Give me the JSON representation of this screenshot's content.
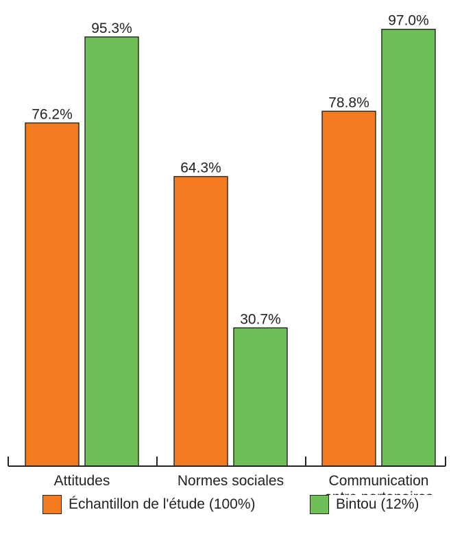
{
  "chart_data": {
    "type": "bar",
    "title": "",
    "xlabel": "",
    "ylabel": "",
    "ylim": [
      0,
      100
    ],
    "grid": false,
    "legend_position": "bottom",
    "categories": [
      "Attitudes",
      "Normes sociales",
      "Communication entre partenaires"
    ],
    "category_lines": [
      [
        "Attitudes"
      ],
      [
        "Normes sociales"
      ],
      [
        "Communication",
        "entre partenaires"
      ]
    ],
    "series": [
      {
        "name": "Échantillon de l'étude (100%)",
        "color": "#f47b20",
        "values": [
          76.2,
          64.3,
          78.8
        ],
        "labels": [
          "76.2%",
          "64.3%",
          "78.8%"
        ]
      },
      {
        "name": "Bintou (12%)",
        "color": "#6ebf57",
        "values": [
          95.3,
          30.7,
          97.0
        ],
        "labels": [
          "95.3%",
          "30.7%",
          "97.0%"
        ]
      }
    ]
  }
}
